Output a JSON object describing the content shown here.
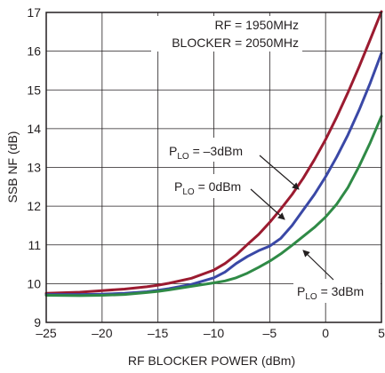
{
  "chart_data": {
    "type": "line",
    "xlabel": "RF BLOCKER POWER (dBm)",
    "ylabel": "SSB NF (dB)",
    "xlim": [
      -25,
      5
    ],
    "ylim": [
      9,
      17
    ],
    "xticks": [
      -25,
      -20,
      -15,
      -10,
      -5,
      0,
      5
    ],
    "yticks": [
      9,
      10,
      11,
      12,
      13,
      14,
      15,
      16,
      17
    ],
    "xtick_labels": [
      "–25",
      "–20",
      "–15",
      "–10",
      "–5",
      "0",
      "5"
    ],
    "ytick_labels": [
      "9",
      "10",
      "11",
      "12",
      "13",
      "14",
      "15",
      "16",
      "17"
    ],
    "grid": true,
    "annotations": [
      "RF = 1950MHz",
      "BLOCKER = 2050MHz"
    ],
    "series": [
      {
        "name": "PLO = –3dBm",
        "label_main": "P",
        "label_sub": "LO",
        "label_rest": " = –3dBm",
        "color": "#9b1b30",
        "x": [
          -25,
          -22,
          -20,
          -18,
          -16,
          -15,
          -14,
          -12,
          -10,
          -9,
          -8,
          -7,
          -6,
          -5,
          -4,
          -3,
          -2,
          -1,
          0,
          1,
          2,
          3,
          4,
          5
        ],
        "y": [
          9.75,
          9.78,
          9.82,
          9.86,
          9.92,
          9.96,
          10.01,
          10.14,
          10.35,
          10.52,
          10.74,
          11.01,
          11.27,
          11.58,
          11.93,
          12.3,
          12.72,
          13.2,
          13.72,
          14.3,
          14.93,
          15.6,
          16.3,
          17.02
        ]
      },
      {
        "name": "PLO = 0dBm",
        "label_main": "P",
        "label_sub": "LO",
        "label_rest": " = 0dBm",
        "color": "#3a48a6",
        "x": [
          -25,
          -22,
          -20,
          -18,
          -16,
          -15,
          -14,
          -12,
          -10,
          -9,
          -8,
          -7,
          -6,
          -5,
          -4,
          -3,
          -2,
          -1,
          0,
          1,
          2,
          3,
          4,
          5
        ],
        "y": [
          9.72,
          9.72,
          9.73,
          9.75,
          9.79,
          9.83,
          9.87,
          9.98,
          10.15,
          10.3,
          10.52,
          10.7,
          10.85,
          10.97,
          11.17,
          11.5,
          11.9,
          12.3,
          12.76,
          13.27,
          13.84,
          14.48,
          15.18,
          15.95
        ]
      },
      {
        "name": "PLO = 3dBm",
        "label_main": "P",
        "label_sub": "LO",
        "label_rest": " = 3dBm",
        "color": "#2f8a46",
        "x": [
          -25,
          -22,
          -20,
          -18,
          -16,
          -15,
          -14,
          -12,
          -10,
          -9,
          -8,
          -7,
          -6,
          -5,
          -4,
          -3,
          -2,
          -1,
          0,
          1,
          2,
          3,
          4,
          5
        ],
        "y": [
          9.7,
          9.69,
          9.7,
          9.72,
          9.77,
          9.8,
          9.84,
          9.93,
          10.02,
          10.07,
          10.15,
          10.27,
          10.42,
          10.58,
          10.77,
          10.99,
          11.22,
          11.45,
          11.72,
          12.05,
          12.48,
          13.03,
          13.64,
          14.32
        ]
      }
    ]
  }
}
